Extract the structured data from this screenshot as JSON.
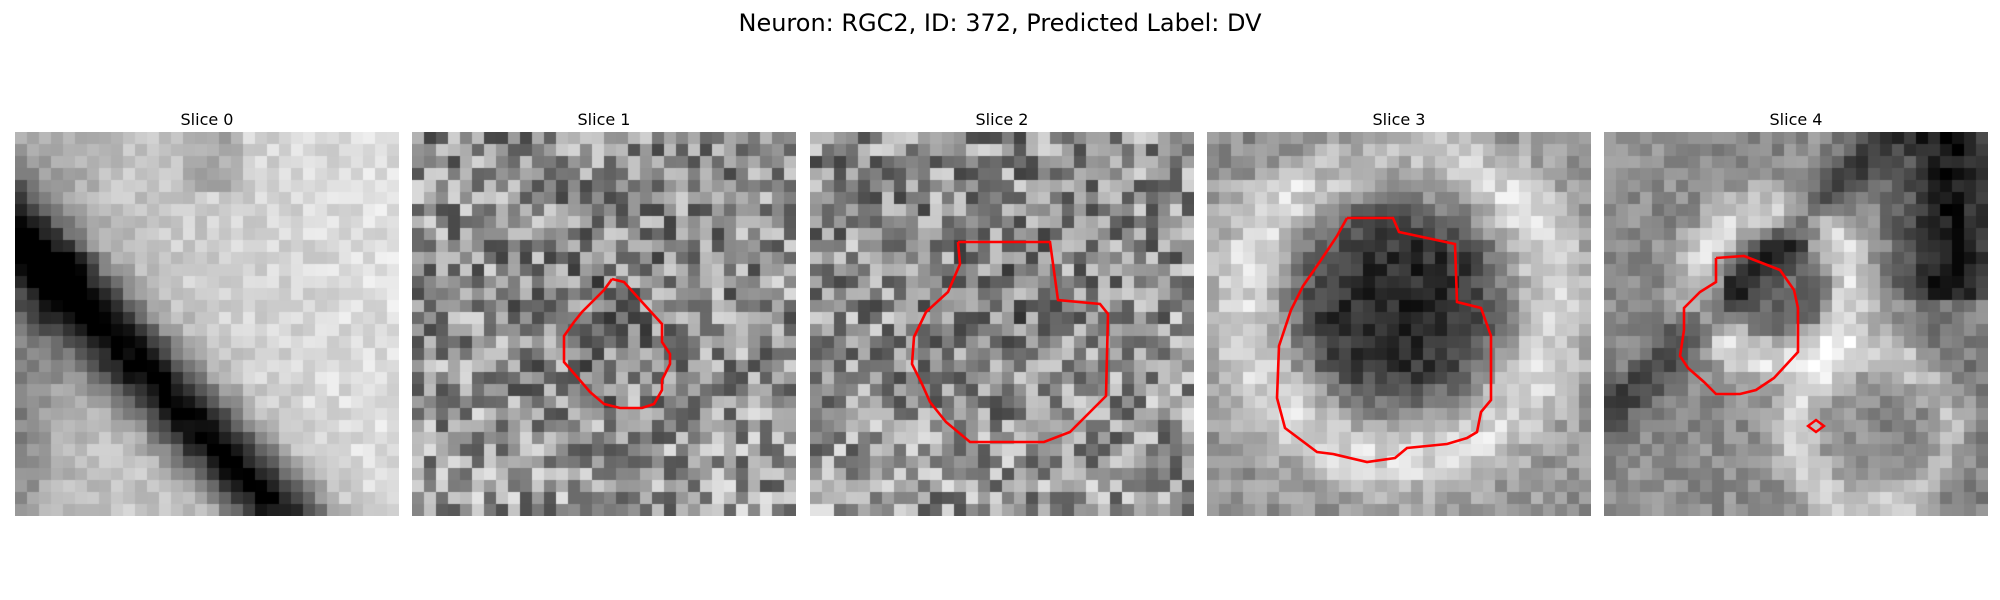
{
  "figure": {
    "title": "Neuron: RGC2, ID: 372, Predicted Label: DV",
    "contour_color": "#ff0000"
  },
  "slices": [
    {
      "title": "Slice 0",
      "pattern": "diagonal-band",
      "has_contour": false
    },
    {
      "title": "Slice 1",
      "pattern": "noisy-texture",
      "has_contour": true
    },
    {
      "title": "Slice 2",
      "pattern": "noisy-texture",
      "has_contour": true
    },
    {
      "title": "Slice 3",
      "pattern": "dark-blob-bright-ring",
      "has_contour": true
    },
    {
      "title": "Slice 4",
      "pattern": "ring-structures",
      "has_contour": true
    }
  ]
}
